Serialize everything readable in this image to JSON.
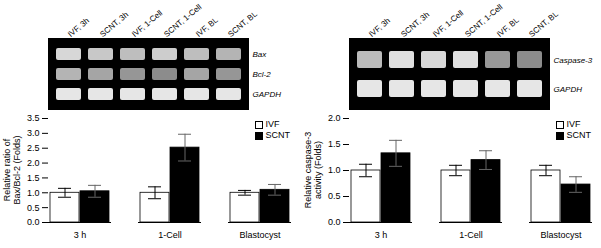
{
  "chart_data": [
    {
      "type": "heatmap",
      "x": [
        "IVF, 3h",
        "SCNT, 3h",
        "IVF, 1-Cell",
        "SCNT, 1-Cell",
        "IVF, BL",
        "SCNT, BL"
      ],
      "y": [
        "Bax",
        "Bcl-2",
        "GAPDH"
      ],
      "values": [
        [
          0.85,
          0.82,
          0.8,
          0.83,
          0.8,
          0.78
        ],
        [
          0.78,
          0.75,
          0.72,
          0.7,
          0.75,
          0.72
        ],
        [
          0.88,
          0.88,
          0.88,
          0.88,
          0.88,
          0.88
        ]
      ]
    },
    {
      "type": "heatmap",
      "x": [
        "IVF, 3h",
        "SCNT, 3h",
        "IVF, 1-Cell",
        "SCNT, 1-Cell",
        "IVF, BL",
        "SCNT, BL"
      ],
      "y": [
        "Caspase-3",
        "GAPDH"
      ],
      "values": [
        [
          0.7,
          0.85,
          0.82,
          0.85,
          0.55,
          0.5
        ],
        [
          0.88,
          0.88,
          0.88,
          0.88,
          0.88,
          0.88
        ]
      ]
    },
    {
      "type": "bar",
      "categories": [
        "3 h",
        "1-Cell",
        "Blastocyst"
      ],
      "series": [
        {
          "name": "IVF",
          "color": "white",
          "values": [
            1.0,
            1.0,
            1.0
          ],
          "errors": [
            0.15,
            0.2,
            0.08
          ]
        },
        {
          "name": "SCNT",
          "color": "black",
          "values": [
            1.05,
            2.52,
            1.1
          ],
          "errors": [
            0.2,
            0.45,
            0.18
          ]
        }
      ],
      "ylabel": "Relative ratio of\nBax/Bcl-2 (Folds)",
      "ylim": [
        0,
        3.5
      ],
      "yticks": [
        {
          "value": 0,
          "label": "0.0"
        },
        0.5,
        {
          "value": 1,
          "label": "1.0"
        },
        1.5,
        {
          "value": 2,
          "label": "2.0"
        },
        2.5,
        {
          "value": 3,
          "label": "3.0"
        },
        3.5
      ],
      "legend": "upper right"
    },
    {
      "type": "bar",
      "categories": [
        "3 h",
        "1-Cell",
        "Blastocyst"
      ],
      "series": [
        {
          "name": "IVF",
          "color": "white",
          "values": [
            1.0,
            1.0,
            1.0
          ],
          "errors": [
            0.12,
            0.1,
            0.1
          ]
        },
        {
          "name": "SCNT",
          "color": "black",
          "values": [
            1.33,
            1.2,
            0.73
          ],
          "errors": [
            0.25,
            0.18,
            0.15
          ]
        }
      ],
      "ylabel": "Relative caspase-3\nactivity (Folds)",
      "ylim": [
        0,
        2.0
      ],
      "yticks": [
        {
          "value": 0,
          "label": "0.0"
        },
        0.5,
        {
          "value": 1,
          "label": "1.0"
        },
        1.5,
        {
          "value": 2,
          "label": "2.0"
        }
      ],
      "legend": "upper right"
    }
  ]
}
